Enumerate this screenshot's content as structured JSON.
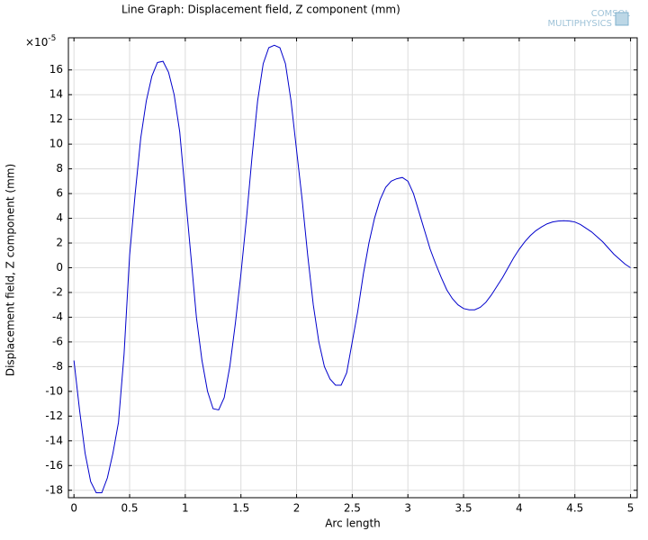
{
  "chart_data": {
    "type": "line",
    "title": "Line Graph: Displacement field, Z component (mm)",
    "logo": [
      "COMSOL",
      "MULTIPHYSICS"
    ],
    "x_label": "Arc length",
    "y_label": "Displacement field, Z component (mm)",
    "y_multiplier": "×10",
    "y_multiplier_exp": "-5",
    "grid": true,
    "xlim": [
      -0.05,
      5.06
    ],
    "ylim": [
      -18.6,
      18.6
    ],
    "xticks": [
      0,
      0.5,
      1,
      1.5,
      2,
      2.5,
      3,
      3.5,
      4,
      4.5,
      5
    ],
    "yticks": [
      -18,
      -16,
      -14,
      -12,
      -10,
      -8,
      -6,
      -4,
      -2,
      0,
      2,
      4,
      6,
      8,
      10,
      12,
      14,
      16
    ],
    "series": [
      {
        "color": "#0000cc",
        "x": [
          0,
          0.05,
          0.1,
          0.15,
          0.2,
          0.25,
          0.3,
          0.35,
          0.4,
          0.45,
          0.5,
          0.55,
          0.6,
          0.65,
          0.7,
          0.75,
          0.8,
          0.85,
          0.9,
          0.95,
          1,
          1.05,
          1.1,
          1.15,
          1.2,
          1.25,
          1.3,
          1.35,
          1.4,
          1.45,
          1.5,
          1.55,
          1.6,
          1.65,
          1.7,
          1.75,
          1.8,
          1.85,
          1.9,
          1.95,
          2,
          2.05,
          2.1,
          2.15,
          2.2,
          2.25,
          2.3,
          2.35,
          2.4,
          2.45,
          2.5,
          2.55,
          2.6,
          2.65,
          2.7,
          2.75,
          2.8,
          2.85,
          2.9,
          2.95,
          3,
          3.05,
          3.1,
          3.15,
          3.2,
          3.25,
          3.3,
          3.35,
          3.4,
          3.45,
          3.5,
          3.55,
          3.6,
          3.65,
          3.7,
          3.75,
          3.8,
          3.85,
          3.9,
          3.95,
          4,
          4.05,
          4.1,
          4.15,
          4.2,
          4.25,
          4.3,
          4.35,
          4.4,
          4.45,
          4.5,
          4.55,
          4.6,
          4.65,
          4.7,
          4.75,
          4.8,
          4.85,
          4.9,
          4.95,
          5
        ],
        "values": [
          -7.5,
          -11.5,
          -15,
          -17.3,
          -18.2,
          -18.2,
          -17,
          -15,
          -12.5,
          -7,
          1,
          6,
          10.5,
          13.5,
          15.5,
          16.6,
          16.7,
          15.8,
          14,
          11,
          6,
          1,
          -4,
          -7.5,
          -10,
          -11.4,
          -11.5,
          -10.5,
          -8,
          -4.5,
          -0.5,
          4,
          9,
          13.5,
          16.5,
          17.8,
          18,
          17.8,
          16.5,
          13.5,
          9.5,
          5.5,
          1,
          -3,
          -6,
          -8,
          -9,
          -9.5,
          -9.5,
          -8.5,
          -6,
          -3.5,
          -0.5,
          2,
          4,
          5.5,
          6.5,
          7,
          7.2,
          7.3,
          7,
          6,
          4.5,
          3,
          1.5,
          0.3,
          -0.8,
          -1.8,
          -2.5,
          -3,
          -3.3,
          -3.4,
          -3.4,
          -3.2,
          -2.8,
          -2.2,
          -1.5,
          -0.8,
          0,
          0.8,
          1.5,
          2.1,
          2.6,
          3,
          3.3,
          3.55,
          3.7,
          3.78,
          3.8,
          3.78,
          3.7,
          3.5,
          3.2,
          2.9,
          2.5,
          2.1,
          1.6,
          1.1,
          0.7,
          0.3,
          0
        ]
      }
    ]
  }
}
